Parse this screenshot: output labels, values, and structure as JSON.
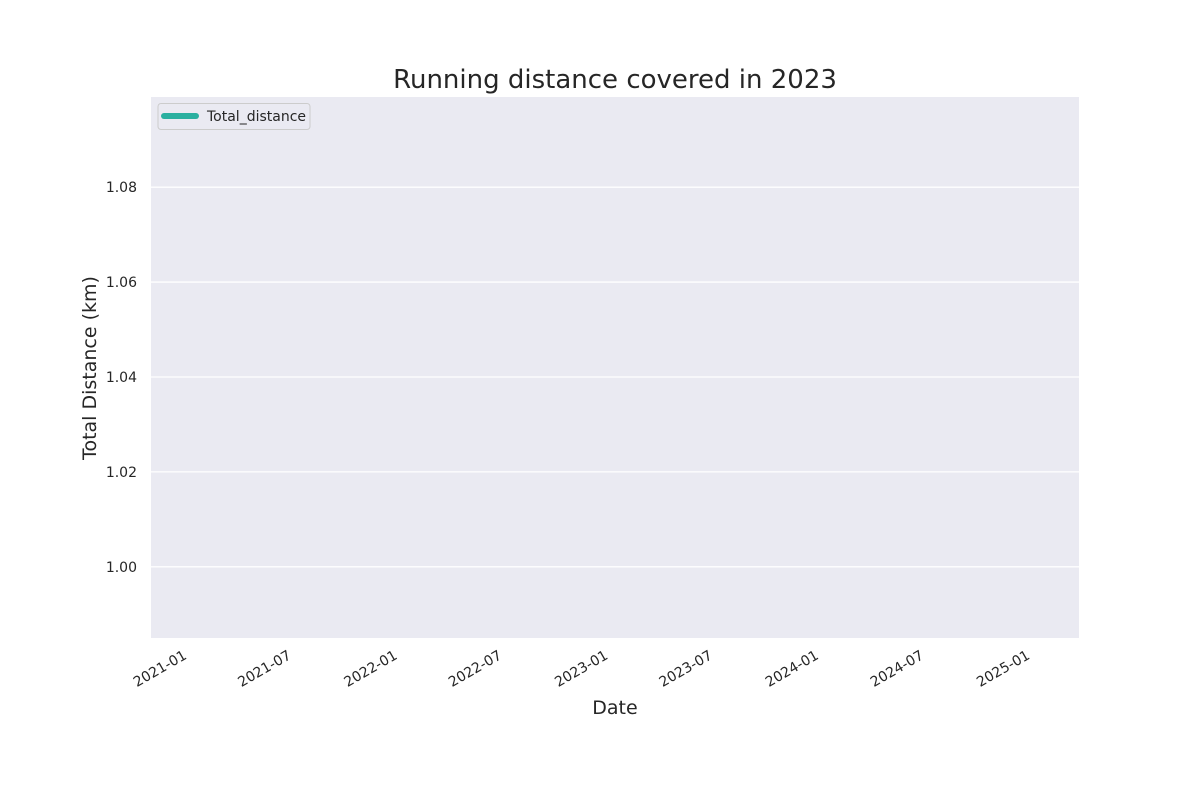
{
  "chart_data": {
    "type": "line",
    "title": "Running distance covered in 2023",
    "xlabel": "Date",
    "ylabel": "Total Distance (km)",
    "x_tick_labels": [
      "2021-01",
      "2021-07",
      "2022-01",
      "2022-07",
      "2023-01",
      "2023-07",
      "2024-01",
      "2024-07",
      "2025-01"
    ],
    "y_tick_labels": [
      "1.00",
      "1.02",
      "1.04",
      "1.06",
      "1.08"
    ],
    "ylim": [
      0.985,
      1.099
    ],
    "xlim": [
      "2020-11-09",
      "2025-04-05"
    ],
    "grid": true,
    "legend_position": "upper left",
    "series": [
      {
        "name": "Total_distance",
        "color": "#2ab0a0",
        "x": [],
        "y": []
      }
    ],
    "colors": {
      "background": "#ffffff",
      "plot_background": "#eaeaf2",
      "grid": "#ffffff",
      "text": "#262626"
    }
  }
}
